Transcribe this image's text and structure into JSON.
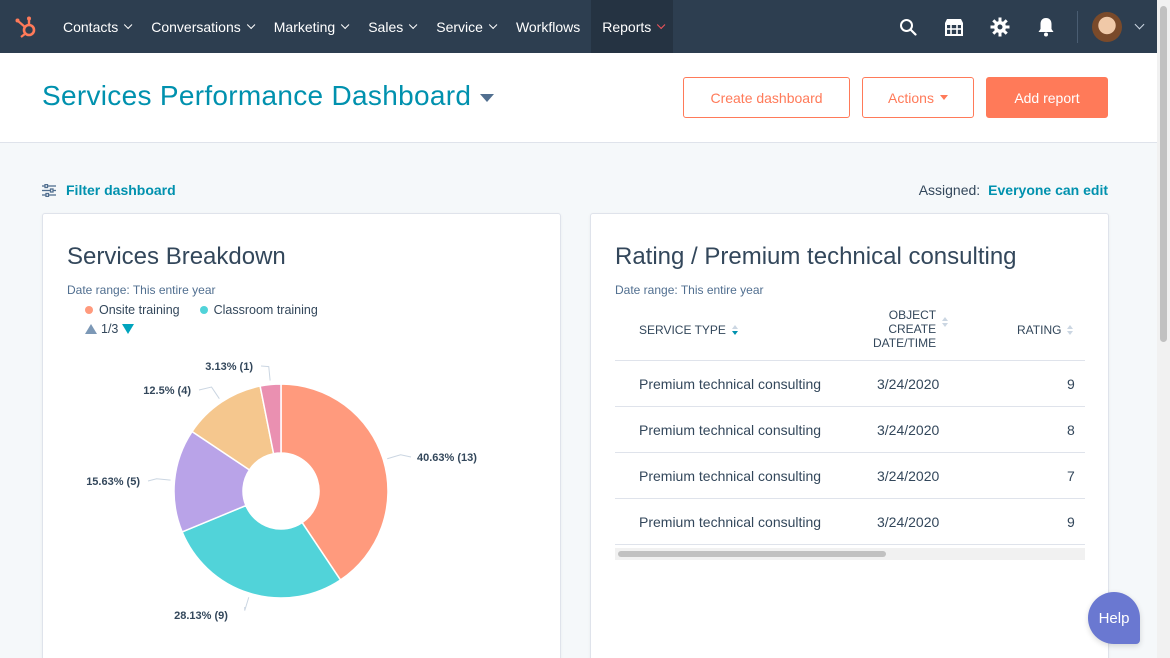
{
  "nav": {
    "items": [
      {
        "label": "Contacts",
        "dropdown": true
      },
      {
        "label": "Conversations",
        "dropdown": true
      },
      {
        "label": "Marketing",
        "dropdown": true
      },
      {
        "label": "Sales",
        "dropdown": true
      },
      {
        "label": "Service",
        "dropdown": true
      },
      {
        "label": "Workflows",
        "dropdown": false
      },
      {
        "label": "Reports",
        "dropdown": true,
        "active": true
      }
    ],
    "right_icons": [
      "search-icon",
      "marketplace-icon",
      "gear-icon",
      "bell-icon"
    ]
  },
  "header": {
    "title": "Services Performance Dashboard",
    "create_dashboard": "Create dashboard",
    "actions": "Actions",
    "add_report": "Add report"
  },
  "toolbar": {
    "filter": "Filter dashboard",
    "assigned_label": "Assigned:",
    "assigned_value": "Everyone can edit"
  },
  "breakdown": {
    "title": "Services Breakdown",
    "date_range": "Date range:  This entire year",
    "legend": [
      {
        "label": "Onsite training",
        "color": "#ff9a7d"
      },
      {
        "label": "Classroom training",
        "color": "#51d3d9"
      }
    ],
    "pager": "1/3"
  },
  "chart_data": {
    "type": "pie",
    "variant": "donut",
    "slices": [
      {
        "value": 13,
        "percent": 40.63,
        "label": "40.63% (13)",
        "color": "#ff9a7d"
      },
      {
        "value": 9,
        "percent": 28.13,
        "label": "28.13% (9)",
        "color": "#51d3d9"
      },
      {
        "value": 5,
        "percent": 15.63,
        "label": "15.63% (5)",
        "color": "#b9a3e8"
      },
      {
        "value": 4,
        "percent": 12.5,
        "label": "12.5% (4)",
        "color": "#f5c78e"
      },
      {
        "value": 1,
        "percent": 3.13,
        "label": "3.13% (1)",
        "color": "#ea90b1"
      }
    ],
    "start_angle_deg": 0,
    "legend_placement": "top-left"
  },
  "rating": {
    "title": "Rating / Premium technical consulting",
    "date_range": "Date range:  This entire year",
    "columns": [
      "SERVICE TYPE",
      "OBJECT CREATE DATE/TIME",
      "RATING"
    ],
    "col_date_lines": [
      "OBJECT",
      "CREATE",
      "DATE/TIME"
    ],
    "rows": [
      {
        "service": "Premium technical consulting",
        "date": "3/24/2020",
        "rating": "9"
      },
      {
        "service": "Premium technical consulting",
        "date": "3/24/2020",
        "rating": "8"
      },
      {
        "service": "Premium technical consulting",
        "date": "3/24/2020",
        "rating": "7"
      },
      {
        "service": "Premium technical consulting",
        "date": "3/24/2020",
        "rating": "9"
      }
    ]
  },
  "help": "Help",
  "colors": {
    "nav_bg": "#2d3e50",
    "accent_teal": "#0091ae",
    "accent_orange": "#ff7a59"
  }
}
